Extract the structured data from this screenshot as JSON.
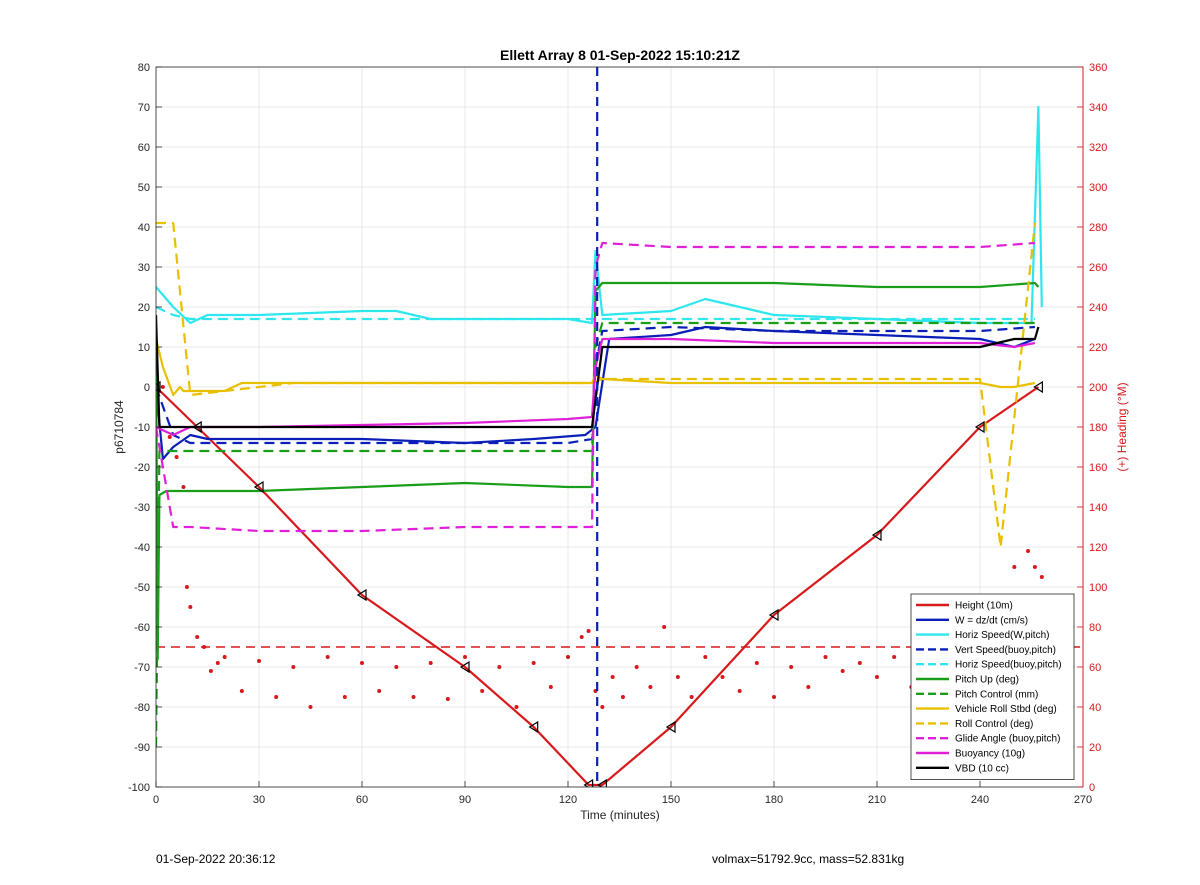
{
  "chart_data": {
    "type": "line",
    "title": "Ellett Array 8 01-Sep-2022 15:10:21Z",
    "xlabel": "Time (minutes)",
    "ylabel": "p6710784",
    "y2label": "(+) Heading (°M)",
    "xlim": [
      0,
      270
    ],
    "ylim": [
      -100,
      80
    ],
    "y2lim": [
      0,
      360
    ],
    "xticks": [
      0,
      30,
      60,
      90,
      120,
      150,
      180,
      210,
      240,
      270
    ],
    "yticks": [
      -100,
      -90,
      -80,
      -70,
      -60,
      -50,
      -40,
      -30,
      -20,
      -10,
      0,
      10,
      20,
      30,
      40,
      50,
      60,
      70,
      80
    ],
    "y2ticks": [
      0,
      20,
      40,
      60,
      80,
      100,
      120,
      140,
      160,
      180,
      200,
      220,
      240,
      260,
      280,
      300,
      320,
      340,
      360
    ],
    "grid": true,
    "legend_position": "bottom-right",
    "apogee_time": 128.5,
    "series": [
      {
        "name": "Height (10m)",
        "color": "#d7191c",
        "style": "solid",
        "x": [
          0,
          12,
          30,
          60,
          90,
          110,
          126,
          130,
          150,
          180,
          210,
          240,
          257
        ],
        "y": [
          0,
          -10,
          -25,
          -52,
          -70,
          -85,
          -99.5,
          -99.5,
          -85,
          -57,
          -37,
          -10,
          0
        ]
      },
      {
        "name": "W = dz/dt (cm/s)",
        "color": "#0a1fb8",
        "style": "solid",
        "x": [
          0,
          2,
          5,
          10,
          15,
          30,
          60,
          90,
          110,
          125,
          128,
          132,
          150,
          160,
          180,
          210,
          240,
          250,
          256
        ],
        "y": [
          0,
          -18,
          -15,
          -12,
          -13,
          -13,
          -13,
          -14,
          -13,
          -12,
          -10,
          12,
          13,
          15,
          14,
          13,
          12,
          10,
          12
        ]
      },
      {
        "name": "Horiz Speed(W,pitch)",
        "color": "#2ee6ee",
        "style": "solid",
        "x": [
          0,
          2,
          5,
          10,
          15,
          30,
          60,
          70,
          80,
          100,
          120,
          127,
          128,
          130,
          150,
          160,
          180,
          210,
          240,
          255,
          257,
          258
        ],
        "y": [
          25,
          23,
          20,
          16,
          18,
          18,
          19,
          19,
          17,
          17,
          17,
          16,
          34,
          18,
          19,
          22,
          18,
          17,
          16,
          16,
          70,
          20
        ]
      },
      {
        "name": "Vert Speed(buoy,pitch)",
        "color": "#0a1fb8",
        "style": "dashed",
        "x": [
          0,
          5,
          10,
          30,
          60,
          90,
          120,
          127,
          128,
          130,
          150,
          180,
          210,
          240,
          256
        ],
        "y": [
          0,
          -12,
          -14,
          -14,
          -14,
          -14,
          -14,
          -13,
          5,
          14,
          15,
          14,
          14,
          14,
          15
        ]
      },
      {
        "name": "Horiz Speed(buoy,pitch)",
        "color": "#2ee6ee",
        "style": "dashed",
        "x": [
          0,
          5,
          10,
          30,
          60,
          90,
          120,
          127,
          128,
          130,
          150,
          180,
          210,
          240,
          256
        ],
        "y": [
          20,
          18,
          17,
          17,
          17,
          17,
          17,
          17,
          17,
          17,
          17,
          17,
          17,
          17,
          17
        ]
      },
      {
        "name": "Pitch Up (deg)",
        "color": "#1a9e1a",
        "style": "solid",
        "x": [
          0,
          0.5,
          1,
          3,
          10,
          30,
          60,
          90,
          120,
          127,
          128,
          130,
          150,
          180,
          210,
          240,
          256,
          257
        ],
        "y": [
          15,
          -68,
          -27,
          -26,
          -26,
          -26,
          -25,
          -24,
          -25,
          -25,
          24,
          26,
          26,
          26,
          25,
          25,
          26,
          25
        ]
      },
      {
        "name": "Pitch Control (mm)",
        "color": "#1a9e1a",
        "style": "dashed",
        "x": [
          0,
          1,
          3,
          30,
          60,
          90,
          127,
          128,
          130,
          150,
          180,
          210,
          240,
          256
        ],
        "y": [
          -90,
          -16,
          -16,
          -16,
          -16,
          -16,
          -16,
          10,
          16,
          16,
          16,
          16,
          16,
          16
        ]
      },
      {
        "name": "Vehicle Roll Stbd (deg)",
        "color": "#e8c000",
        "style": "solid",
        "x": [
          0,
          2,
          5,
          7,
          8,
          10,
          15,
          20,
          25,
          40,
          60,
          80,
          100,
          120,
          127,
          128,
          130,
          150,
          180,
          210,
          240,
          246,
          250,
          256
        ],
        "y": [
          12,
          5,
          -2,
          0,
          -1,
          -1,
          -1,
          -1,
          1,
          1,
          1,
          1,
          1,
          1,
          1,
          3,
          2,
          1,
          1,
          1,
          1,
          0,
          0,
          1
        ]
      },
      {
        "name": "Roll Control (deg)",
        "color": "#e8c000",
        "style": "dashed",
        "x": [
          0,
          5,
          10,
          20,
          40,
          60,
          80,
          100,
          120,
          127,
          130,
          150,
          180,
          210,
          240,
          246,
          256
        ],
        "y": [
          41,
          41,
          -2,
          -1,
          1,
          1,
          1,
          1,
          1,
          1,
          2,
          2,
          2,
          2,
          2,
          -40,
          41
        ]
      },
      {
        "name": "Glide Angle (buoy,pitch)",
        "color": "#e020d8",
        "style": "dashed",
        "x": [
          0,
          5,
          10,
          30,
          60,
          90,
          120,
          127,
          128,
          130,
          150,
          180,
          210,
          240,
          256
        ],
        "y": [
          -10,
          -35,
          -35,
          -36,
          -36,
          -35,
          -35,
          -35,
          30,
          36,
          35,
          35,
          35,
          35,
          36
        ]
      },
      {
        "name": "Buoyancy (10g)",
        "color": "#e020d8",
        "style": "solid",
        "x": [
          0,
          5,
          10,
          30,
          60,
          90,
          120,
          127,
          128,
          130,
          150,
          180,
          210,
          240,
          250,
          256
        ],
        "y": [
          -10,
          -12,
          -10,
          -10,
          -9.5,
          -9,
          -8,
          -7.5,
          5,
          12,
          12,
          11,
          11,
          11,
          10,
          11
        ]
      },
      {
        "name": "VBD (10 cc)",
        "color": "#000000",
        "style": "solid",
        "x": [
          0,
          1,
          2,
          5,
          10,
          30,
          60,
          90,
          120,
          127,
          130,
          150,
          180,
          210,
          240,
          250,
          256,
          257
        ],
        "y": [
          18,
          -10,
          -10,
          -10,
          -10,
          -10,
          -10,
          -10,
          -10,
          -10,
          10,
          10,
          10,
          10,
          10,
          12,
          12,
          15
        ]
      }
    ],
    "heading_reference": {
      "y2": 70,
      "color": "#d7191c",
      "style": "dashed"
    },
    "heading_points": {
      "color": "#d7191c",
      "x": [
        0,
        2,
        4,
        6,
        8,
        9,
        10,
        12,
        14,
        16,
        18,
        20,
        25,
        30,
        35,
        40,
        45,
        50,
        55,
        60,
        65,
        70,
        75,
        80,
        85,
        90,
        95,
        100,
        105,
        110,
        115,
        120,
        124,
        126,
        128,
        130,
        133,
        136,
        140,
        144,
        148,
        152,
        156,
        160,
        165,
        170,
        175,
        180,
        185,
        190,
        195,
        200,
        205,
        210,
        215,
        220,
        225,
        230,
        235,
        240,
        245,
        250,
        254,
        256,
        258
      ],
      "y2": [
        180,
        200,
        175,
        165,
        150,
        100,
        90,
        75,
        70,
        58,
        62,
        65,
        48,
        63,
        45,
        60,
        40,
        65,
        45,
        62,
        48,
        60,
        45,
        62,
        44,
        65,
        48,
        60,
        40,
        62,
        50,
        65,
        75,
        78,
        48,
        40,
        55,
        45,
        60,
        50,
        80,
        55,
        45,
        65,
        55,
        48,
        62,
        45,
        60,
        50,
        65,
        58,
        62,
        55,
        65,
        50,
        60,
        62,
        55,
        60,
        55,
        110,
        118,
        110,
        105
      ]
    }
  },
  "footer": {
    "left": "01-Sep-2022 20:36:12",
    "right": "volmax=51792.9cc, mass=52.831kg"
  }
}
